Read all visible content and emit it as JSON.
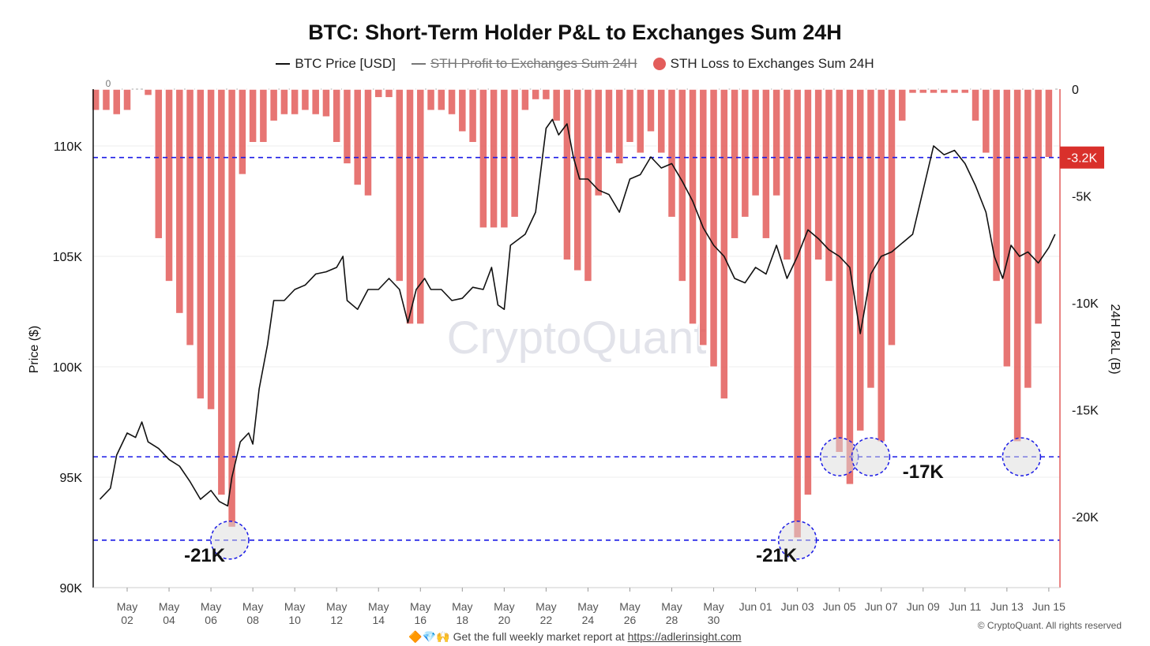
{
  "chart_data": {
    "type": "bar+line",
    "title": "BTC: Short-Term Holder P&L to Exchanges Sum 24H",
    "legend": [
      {
        "label": "BTC Price [USD]",
        "color": "#111111",
        "active": true
      },
      {
        "label": "STH Profit to Exchanges Sum 24H",
        "color": "#777777",
        "active": false
      },
      {
        "label": "STH Loss to Exchanges Sum 24H",
        "color": "#e35d5b",
        "active": true
      }
    ],
    "legend_placement": "top-center",
    "ylabel_left": "Price ($)",
    "ylabel_right": "24H P&L (B)",
    "ylim_left": [
      90000,
      112600
    ],
    "ylim_right": [
      -23300,
      0
    ],
    "yticks_left": [
      "90K",
      "95K",
      "100K",
      "105K",
      "110K"
    ],
    "yticks_right": [
      "0",
      "-5K",
      "-10K",
      "-15K",
      "-20K"
    ],
    "top_left_zero_label": "0",
    "xticks": [
      {
        "l1": "May",
        "l2": "02",
        "day": 2
      },
      {
        "l1": "May",
        "l2": "04",
        "day": 4
      },
      {
        "l1": "May",
        "l2": "06",
        "day": 6
      },
      {
        "l1": "May",
        "l2": "08",
        "day": 8
      },
      {
        "l1": "May",
        "l2": "10",
        "day": 10
      },
      {
        "l1": "May",
        "l2": "12",
        "day": 12
      },
      {
        "l1": "May",
        "l2": "14",
        "day": 14
      },
      {
        "l1": "May",
        "l2": "16",
        "day": 16
      },
      {
        "l1": "May",
        "l2": "18",
        "day": 18
      },
      {
        "l1": "May",
        "l2": "20",
        "day": 20
      },
      {
        "l1": "May",
        "l2": "22",
        "day": 22
      },
      {
        "l1": "May",
        "l2": "24",
        "day": 24
      },
      {
        "l1": "May",
        "l2": "26",
        "day": 26
      },
      {
        "l1": "May",
        "l2": "28",
        "day": 28
      },
      {
        "l1": "May",
        "l2": "30",
        "day": 30
      },
      {
        "l1": "Jun 01",
        "l2": "",
        "day": 32
      },
      {
        "l1": "Jun 03",
        "l2": "",
        "day": 34
      },
      {
        "l1": "Jun 05",
        "l2": "",
        "day": 36
      },
      {
        "l1": "Jun 07",
        "l2": "",
        "day": 38
      },
      {
        "l1": "Jun 09",
        "l2": "",
        "day": 40
      },
      {
        "l1": "Jun 11",
        "l2": "",
        "day": 42
      },
      {
        "l1": "Jun 13",
        "l2": "",
        "day": 44
      },
      {
        "l1": "Jun 15",
        "l2": "",
        "day": 46
      }
    ],
    "x_unit": "day index (1 = May 1, 32 = Jun 1)",
    "loss_series": {
      "name": "STH Loss to Exchanges Sum 24H",
      "start_day": 0.5,
      "step_day": 0.5,
      "values_k": [
        -1,
        -1,
        -1.2,
        -1,
        0,
        -0.3,
        -7,
        -9,
        -10.5,
        -12,
        -14.5,
        -15,
        -19,
        -20.5,
        -4,
        -2.5,
        -2.5,
        -1.5,
        -1.2,
        -1.2,
        -1,
        -1.2,
        -1.3,
        -2.5,
        -3.5,
        -4.5,
        -5,
        -0.4,
        -0.4,
        -9,
        -11,
        -11,
        -1,
        -1,
        -1.2,
        -2,
        -2.5,
        -6.5,
        -6.5,
        -6.5,
        -6,
        -1,
        -0.5,
        -0.5,
        -1.5,
        -8,
        -8.5,
        -9,
        -5,
        -3,
        -3.5,
        -2.5,
        -3,
        -2,
        -3,
        -6,
        -9,
        -11,
        -12,
        -13,
        -14.5,
        -7,
        -6,
        -5,
        -7,
        -5,
        -8,
        -21,
        -19,
        -8,
        -9,
        -17,
        -18.5,
        -16,
        -14,
        -16.5,
        -12,
        -1.5,
        -0.2,
        -0.2,
        -0.2,
        -0.2,
        -0.2,
        -0.2,
        -1.5,
        -3,
        -9,
        -13,
        -16.5,
        -14,
        -11,
        -3.2
      ]
    },
    "price_series": {
      "name": "BTC Price [USD]",
      "points_day_k": [
        [
          0.7,
          94.0
        ],
        [
          1.2,
          94.5
        ],
        [
          1.5,
          96.0
        ],
        [
          2.0,
          97.0
        ],
        [
          2.4,
          96.8
        ],
        [
          2.7,
          97.5
        ],
        [
          3.0,
          96.6
        ],
        [
          3.5,
          96.3
        ],
        [
          4.0,
          95.8
        ],
        [
          4.5,
          95.5
        ],
        [
          5.0,
          94.8
        ],
        [
          5.5,
          94.0
        ],
        [
          6.0,
          94.4
        ],
        [
          6.4,
          93.9
        ],
        [
          6.8,
          93.7
        ],
        [
          7.0,
          95.0
        ],
        [
          7.4,
          96.6
        ],
        [
          7.8,
          97.0
        ],
        [
          8.0,
          96.5
        ],
        [
          8.3,
          99.0
        ],
        [
          8.7,
          101.0
        ],
        [
          9.0,
          103.0
        ],
        [
          9.5,
          103.0
        ],
        [
          10.0,
          103.5
        ],
        [
          10.5,
          103.7
        ],
        [
          11.0,
          104.2
        ],
        [
          11.5,
          104.3
        ],
        [
          12.0,
          104.5
        ],
        [
          12.3,
          105.0
        ],
        [
          12.5,
          103.0
        ],
        [
          13.0,
          102.6
        ],
        [
          13.5,
          103.5
        ],
        [
          14.0,
          103.5
        ],
        [
          14.5,
          104.0
        ],
        [
          15.0,
          103.5
        ],
        [
          15.4,
          102.0
        ],
        [
          15.8,
          103.5
        ],
        [
          16.2,
          104.0
        ],
        [
          16.5,
          103.5
        ],
        [
          17.0,
          103.5
        ],
        [
          17.5,
          103.0
        ],
        [
          18.0,
          103.1
        ],
        [
          18.5,
          103.6
        ],
        [
          19.0,
          103.5
        ],
        [
          19.4,
          104.5
        ],
        [
          19.7,
          102.8
        ],
        [
          20.0,
          102.6
        ],
        [
          20.3,
          105.5
        ],
        [
          21.0,
          106.0
        ],
        [
          21.5,
          107.0
        ],
        [
          22.0,
          110.8
        ],
        [
          22.3,
          111.2
        ],
        [
          22.6,
          110.5
        ],
        [
          23.0,
          111.0
        ],
        [
          23.3,
          109.5
        ],
        [
          23.6,
          108.5
        ],
        [
          24.0,
          108.5
        ],
        [
          24.5,
          108.0
        ],
        [
          25.0,
          107.8
        ],
        [
          25.5,
          107.0
        ],
        [
          26.0,
          108.5
        ],
        [
          26.5,
          108.7
        ],
        [
          27.0,
          109.5
        ],
        [
          27.5,
          109.0
        ],
        [
          28.0,
          109.2
        ],
        [
          28.5,
          108.4
        ],
        [
          29.0,
          107.5
        ],
        [
          29.5,
          106.3
        ],
        [
          30.0,
          105.5
        ],
        [
          30.5,
          105.0
        ],
        [
          31.0,
          104.0
        ],
        [
          31.5,
          103.8
        ],
        [
          32.0,
          104.5
        ],
        [
          32.5,
          104.2
        ],
        [
          33.0,
          105.5
        ],
        [
          33.5,
          104.0
        ],
        [
          34.0,
          105.0
        ],
        [
          34.5,
          106.2
        ],
        [
          35.0,
          105.8
        ],
        [
          35.5,
          105.3
        ],
        [
          36.0,
          105.0
        ],
        [
          36.5,
          104.5
        ],
        [
          37.0,
          101.5
        ],
        [
          37.5,
          104.2
        ],
        [
          38.0,
          105.0
        ],
        [
          38.5,
          105.2
        ],
        [
          39.0,
          105.6
        ],
        [
          39.5,
          106.0
        ],
        [
          40.0,
          108.0
        ],
        [
          40.5,
          110.0
        ],
        [
          41.0,
          109.6
        ],
        [
          41.5,
          109.8
        ],
        [
          42.0,
          109.2
        ],
        [
          42.5,
          108.2
        ],
        [
          43.0,
          107.0
        ],
        [
          43.4,
          105.0
        ],
        [
          43.8,
          104.0
        ],
        [
          44.2,
          105.5
        ],
        [
          44.6,
          105.0
        ],
        [
          45.0,
          105.2
        ],
        [
          45.5,
          104.7
        ],
        [
          46.0,
          105.4
        ],
        [
          46.3,
          106.0
        ]
      ]
    },
    "reference_lines_k": [
      -3.2,
      -17.2,
      -21.1
    ],
    "reference_badge": "-3.2K",
    "highlight_points": [
      [
        6.9,
        -21.1
      ],
      [
        34.0,
        -21.1
      ],
      [
        36.0,
        -17.2
      ],
      [
        37.5,
        -17.2
      ],
      [
        44.7,
        -17.2
      ]
    ],
    "annotations": [
      {
        "text": "-21K",
        "day": 5.7,
        "value_k": -21.8
      },
      {
        "text": "-21K",
        "day": 33.0,
        "value_k": -21.8
      },
      {
        "text": "-17K",
        "day": 40.0,
        "value_k": -17.9
      }
    ],
    "watermark": "CryptoQuant"
  },
  "footer": {
    "emoji": "🔶💎🙌",
    "text": "Get the full weekly market report at",
    "link": "https://adlerinsight.com"
  },
  "copyright": "© CryptoQuant. All rights reserved"
}
